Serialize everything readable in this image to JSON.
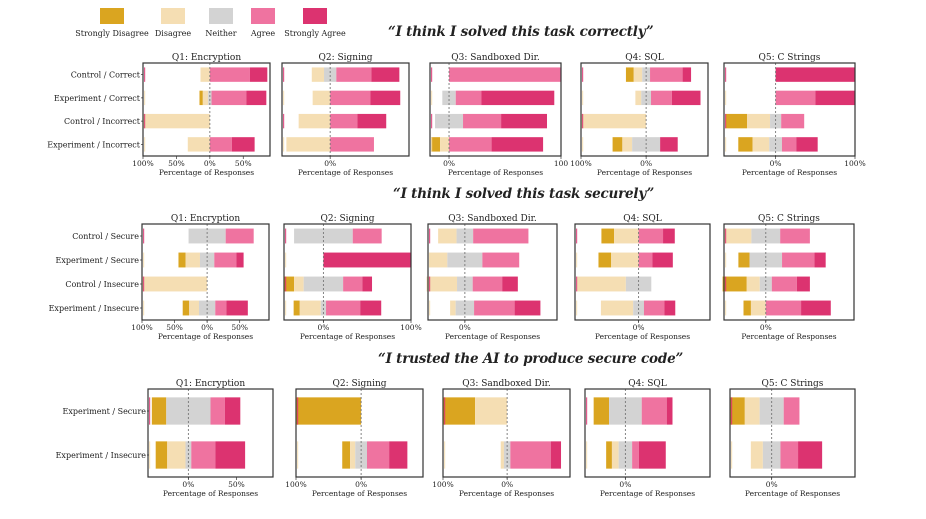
{
  "legend": [
    {
      "label": "Strongly Disagree",
      "color": "#DAA520"
    },
    {
      "label": "Disagree",
      "color": "#F5DEB3"
    },
    {
      "label": "Neither",
      "color": "#D3D3D3"
    },
    {
      "label": "Agree",
      "color": "#EF73A0"
    },
    {
      "label": "Strongly Agree",
      "color": "#DC3370"
    }
  ],
  "sections": [
    {
      "title": "“I think I solved this task correctly”"
    },
    {
      "title": "“I think I solved this task securely”"
    },
    {
      "title": "“I trusted the AI to produce secure code”"
    }
  ],
  "chart_data": [
    {
      "type": "bar",
      "orientation": "horizontal-diverging-stacked",
      "title": "“I think I solved this task correctly”",
      "xlabel": "Percentage of Responses",
      "stack_order": [
        "Strongly Disagree",
        "Disagree",
        "Neither",
        "Agree",
        "Strongly Agree"
      ],
      "categories": [
        "Control / Correct",
        "Experiment / Correct",
        "Control / Incorrect",
        "Experiment / Incorrect"
      ],
      "panels": [
        {
          "title": "Q1: Encryption",
          "xlim": [
            -100,
            90
          ],
          "ticks": [
            "100%",
            "50%",
            "0%",
            "50%"
          ],
          "tick_values": [
            -100,
            -50,
            0,
            50
          ],
          "rows": [
            [
              0,
              14,
              0,
              60,
              26
            ],
            [
              5,
              8,
              5,
              52,
              30
            ],
            [
              0,
              100,
              0,
              0,
              0
            ],
            [
              0,
              33,
              0,
              33,
              34
            ]
          ]
        },
        {
          "title": "Q2: Signing",
          "xlim": [
            -55,
            90
          ],
          "ticks": [
            "0%"
          ],
          "tick_values": [
            0
          ],
          "rows": [
            [
              0,
              14,
              14,
              40,
              32
            ],
            [
              0,
              20,
              0,
              46,
              34
            ],
            [
              0,
              36,
              0,
              31,
              33
            ],
            [
              0,
              50,
              0,
              50,
              0
            ]
          ]
        },
        {
          "title": "Q3: Sandboxed Dir.",
          "xlim": [
            -17,
            100
          ],
          "ticks": [
            "0%",
            "100"
          ],
          "tick_values": [
            0,
            100
          ],
          "rows": [
            [
              0,
              0,
              0,
              100,
              0
            ],
            [
              0,
              0,
              12,
              23,
              65
            ],
            [
              0,
              0,
              25,
              34,
              41
            ],
            [
              8,
              8,
              0,
              38,
              46
            ]
          ]
        },
        {
          "title": "Q4: SQL",
          "xlim": [
            -100,
            95
          ],
          "ticks": [
            "100%",
            "0%"
          ],
          "tick_values": [
            -100,
            0
          ],
          "rows": [
            [
              12,
              13,
              12,
              50,
              13
            ],
            [
              0,
              9,
              15,
              32,
              44
            ],
            [
              0,
              100,
              0,
              0,
              0
            ],
            [
              15,
              15,
              43,
              0,
              27
            ]
          ]
        },
        {
          "title": "Q5: C Strings",
          "xlim": [
            -65,
            100
          ],
          "ticks": [
            "0%",
            "100%"
          ],
          "tick_values": [
            0,
            100
          ],
          "rows": [
            [
              0,
              0,
              0,
              0,
              100
            ],
            [
              0,
              0,
              0,
              50,
              50
            ],
            [
              27,
              29,
              14,
              29,
              0
            ],
            [
              18,
              21,
              16,
              18,
              27
            ]
          ]
        }
      ]
    },
    {
      "type": "bar",
      "orientation": "horizontal-diverging-stacked",
      "title": "“I think I solved this task securely”",
      "xlabel": "Percentage of Responses",
      "stack_order": [
        "Strongly Disagree",
        "Disagree",
        "Neither",
        "Agree",
        "Strongly Agree"
      ],
      "categories": [
        "Control / Secure",
        "Experiment / Secure",
        "Control / Insecure",
        "Experiment / Insecure"
      ],
      "panels": [
        {
          "title": "Q1: Encryption",
          "xlim": [
            -100,
            95
          ],
          "ticks": [
            "100%",
            "50%",
            "0%",
            "50%"
          ],
          "tick_values": [
            -100,
            -50,
            0,
            50
          ],
          "rows": [
            [
              0,
              0,
              57,
              43,
              0
            ],
            [
              11,
              22,
              22,
              34,
              11
            ],
            [
              0,
              100,
              0,
              0,
              0
            ],
            [
              10,
              15,
              25,
              17,
              33
            ]
          ]
        },
        {
          "title": "Q2: Signing",
          "xlim": [
            -45,
            100
          ],
          "ticks": [
            "0%",
            "100%"
          ],
          "tick_values": [
            0,
            100
          ],
          "rows": [
            [
              0,
              0,
              67,
              33,
              0
            ],
            [
              0,
              0,
              0,
              0,
              100
            ],
            [
              11,
              11,
              45,
              22,
              11
            ],
            [
              7,
              24,
              6,
              39,
              24
            ]
          ]
        },
        {
          "title": "Q3: Sandboxed Dir.",
          "xlim": [
            -40,
            100
          ],
          "ticks": [
            "0%"
          ],
          "tick_values": [
            0
          ],
          "rows": [
            [
              0,
              20,
              18,
              60,
              0
            ],
            [
              0,
              20,
              38,
              40,
              0
            ],
            [
              0,
              33,
              17,
              32,
              17
            ],
            [
              0,
              6,
              20,
              44,
              28
            ]
          ]
        },
        {
          "title": "Q4: SQL",
          "xlim": [
            -65,
            73
          ],
          "ticks": [
            "0%"
          ],
          "tick_values": [
            0
          ],
          "rows": [
            [
              13,
              25,
              0,
              25,
              12
            ],
            [
              13,
              28,
              0,
              14,
              21
            ],
            [
              0,
              50,
              26,
              0,
              0
            ],
            [
              0,
              33,
              11,
              21,
              11
            ]
          ]
        },
        {
          "title": "Q5: C Strings",
          "xlim": [
            -45,
            95
          ],
          "ticks": [
            "0%"
          ],
          "tick_values": [
            0
          ],
          "rows": [
            [
              0,
              30,
              31,
              32,
              0
            ],
            [
              12,
              0,
              35,
              35,
              12
            ],
            [
              26,
              14,
              13,
              27,
              14
            ],
            [
              8,
              16,
              0,
              38,
              32
            ]
          ]
        }
      ]
    },
    {
      "type": "bar",
      "orientation": "horizontal-diverging-stacked",
      "title": "“I trusted the AI to produce secure code”",
      "xlabel": "Percentage of Responses",
      "stack_order": [
        "Strongly Disagree",
        "Disagree",
        "Neither",
        "Agree",
        "Strongly Agree"
      ],
      "categories": [
        "Experiment / Secure",
        "Experiment / Insecure"
      ],
      "panels": [
        {
          "title": "Q1: Encryption",
          "xlim": [
            -42,
            88
          ],
          "ticks": [
            "0%",
            "50%"
          ],
          "tick_values": [
            0,
            50
          ],
          "rows": [
            [
              15,
              0,
              46,
              15,
              16
            ],
            [
              12,
              19,
              6,
              25,
              31
            ]
          ]
        },
        {
          "title": "Q2: Signing",
          "xlim": [
            -100,
            95
          ],
          "ticks": [
            "100%",
            "0%"
          ],
          "tick_values": [
            -100,
            0
          ],
          "rows": [
            [
              100,
              0,
              0,
              0,
              0
            ],
            [
              12,
              8,
              18,
              34,
              28
            ]
          ]
        },
        {
          "title": "Q3: Sandboxed Dir.",
          "xlim": [
            -100,
            98
          ],
          "ticks": [
            "100%",
            "0%"
          ],
          "tick_values": [
            -100,
            0
          ],
          "rows": [
            [
              50,
              50,
              0,
              0,
              0
            ],
            [
              0,
              5,
              10,
              63,
              16
            ]
          ]
        },
        {
          "title": "Q4: SQL",
          "xlim": [
            -42,
            88
          ],
          "ticks": [
            "0%"
          ],
          "tick_values": [
            0
          ],
          "rows": [
            [
              16,
              0,
              34,
              26,
              6
            ],
            [
              6,
              7,
              14,
              7,
              28
            ]
          ]
        },
        {
          "title": "Q5: C Strings",
          "xlim": [
            -45,
            90
          ],
          "ticks": [
            "0%"
          ],
          "tick_values": [
            0
          ],
          "rows": [
            [
              16,
              16,
              26,
              17,
              0
            ],
            [
              0,
              13,
              19,
              19,
              26
            ]
          ]
        }
      ]
    }
  ]
}
